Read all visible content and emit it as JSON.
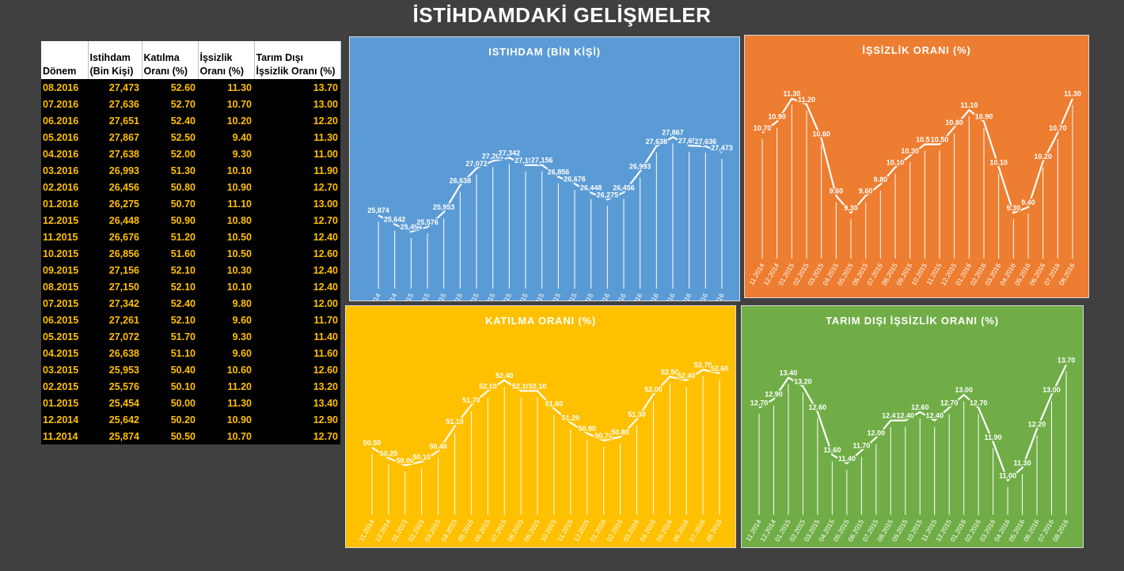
{
  "page": {
    "title": "İSTİHDAMDAKİ GELİŞMELER"
  },
  "table": {
    "headers": [
      {
        "line1": "",
        "line2": "Dönem"
      },
      {
        "line1": "Istihdam",
        "line2": "(Bin Kişi)"
      },
      {
        "line1": "Katılma",
        "line2": "Oranı (%)"
      },
      {
        "line1": "İşsizlik",
        "line2": "Oranı (%)"
      },
      {
        "line1": "Tarım Dışı",
        "line2": "İşsizlik Oranı (%)"
      }
    ],
    "rows": [
      [
        "08.2016",
        "27,473",
        "52.60",
        "11.30",
        "13.70"
      ],
      [
        "07.2016",
        "27,636",
        "52.70",
        "10.70",
        "13.00"
      ],
      [
        "06.2016",
        "27,651",
        "52.40",
        "10.20",
        "12.20"
      ],
      [
        "05.2016",
        "27,867",
        "52.50",
        "9.40",
        "11.30"
      ],
      [
        "04.2016",
        "27,638",
        "52.00",
        "9.30",
        "11.00"
      ],
      [
        "03.2016",
        "26,993",
        "51.30",
        "10.10",
        "11.90"
      ],
      [
        "02.2016",
        "26,456",
        "50.80",
        "10.90",
        "12.70"
      ],
      [
        "01.2016",
        "26,275",
        "50.70",
        "11.10",
        "13.00"
      ],
      [
        "12.2015",
        "26,448",
        "50.90",
        "10.80",
        "12.70"
      ],
      [
        "11.2015",
        "26,676",
        "51.20",
        "10.50",
        "12.40"
      ],
      [
        "10.2015",
        "26,856",
        "51.60",
        "10.50",
        "12.60"
      ],
      [
        "09.2015",
        "27,156",
        "52.10",
        "10.30",
        "12.40"
      ],
      [
        "08.2015",
        "27,150",
        "52.10",
        "10.10",
        "12.40"
      ],
      [
        "07.2015",
        "27,342",
        "52.40",
        "9.80",
        "12.00"
      ],
      [
        "06.2015",
        "27,261",
        "52.10",
        "9.60",
        "11.70"
      ],
      [
        "05.2015",
        "27,072",
        "51.70",
        "9.30",
        "11.40"
      ],
      [
        "04.2015",
        "26,638",
        "51.10",
        "9.60",
        "11.60"
      ],
      [
        "03.2015",
        "25,953",
        "50.40",
        "10.60",
        "12.60"
      ],
      [
        "02.2015",
        "25,576",
        "50.10",
        "11.20",
        "13.20"
      ],
      [
        "01.2015",
        "25,454",
        "50.00",
        "11.30",
        "13.40"
      ],
      [
        "12.2014",
        "25,642",
        "50.20",
        "10.90",
        "12.90"
      ],
      [
        "11.2014",
        "25,874",
        "50.50",
        "10.70",
        "12.70"
      ]
    ]
  },
  "chart_data": [
    {
      "type": "line",
      "title": "ISTIHDAM (BİN KİŞİ)",
      "background": "#5b9bd5",
      "categories": [
        "11.2014",
        "12.2014",
        "01.2015",
        "02.2015",
        "03.2015",
        "04.2015",
        "05.2015",
        "06.2015",
        "07.2015",
        "08.2015",
        "09.2015",
        "10.2015",
        "11.2015",
        "12.2015",
        "01.2016",
        "02.2016",
        "03.2016",
        "04.2016",
        "05.2016",
        "06.2016",
        "07.2016",
        "08.2016"
      ],
      "values": [
        25874,
        25642,
        25454,
        25576,
        25953,
        26638,
        27072,
        27261,
        27342,
        27150,
        27156,
        26856,
        26676,
        26448,
        26275,
        26456,
        26993,
        27638,
        27867,
        27651,
        27636,
        27473
      ],
      "labels": [
        "25,874",
        "25,642",
        "25,454",
        "25,576",
        "25,953",
        "26,638",
        "27,072",
        "27,261",
        "27,342",
        "27,150",
        "27,156",
        "26,856",
        "26,676",
        "26,448",
        "26,275",
        "26,456",
        "26,993",
        "27,638",
        "27,867",
        "27,651",
        "27,636",
        "27,473"
      ],
      "ylim": [
        24000,
        28400
      ],
      "grid": false,
      "legend": "none"
    },
    {
      "type": "line",
      "title": "İŞSİZLİK ORANI (%)",
      "background": "#ed7d31",
      "categories": [
        "11.2014",
        "12.2014",
        "01.2015",
        "02.2015",
        "03.2015",
        "04.2015",
        "05.2015",
        "06.2015",
        "07.2015",
        "08.2015",
        "09.2015",
        "10.2015",
        "11.2015",
        "12.2015",
        "01.2016",
        "02.2016",
        "03.2016",
        "04.2016",
        "05.2016",
        "06.2016",
        "07.2016",
        "08.2016"
      ],
      "values": [
        10.7,
        10.9,
        11.3,
        11.2,
        10.6,
        9.6,
        9.3,
        9.6,
        9.8,
        10.1,
        10.3,
        10.5,
        10.5,
        10.8,
        11.1,
        10.9,
        10.1,
        9.3,
        9.4,
        10.2,
        10.7,
        11.3
      ],
      "labels": [
        "10.70",
        "10.90",
        "11.30",
        "11.20",
        "10.60",
        "9.60",
        "9.30",
        "9.60",
        "9.80",
        "10.10",
        "10.30",
        "10.50",
        "10.50",
        "10.80",
        "11.10",
        "10.90",
        "10.10",
        "9.30",
        "9.40",
        "10.20",
        "10.70",
        "11.30"
      ],
      "ylim": [
        8.5,
        11.6
      ],
      "grid": false,
      "legend": "none"
    },
    {
      "type": "line",
      "title": "KATILMA ORANI (%)",
      "background": "#ffc000",
      "categories": [
        "11.2014",
        "12.2014",
        "01.2015",
        "02.2015",
        "03.2015",
        "04.2015",
        "05.2015",
        "06.2015",
        "07.2015",
        "08.2015",
        "09.2015",
        "10.2015",
        "11.2015",
        "12.2015",
        "01.2016",
        "02.2016",
        "03.2016",
        "04.2016",
        "05.2016",
        "06.2016",
        "07.2016",
        "08.2016"
      ],
      "values": [
        50.5,
        50.2,
        50.0,
        50.1,
        50.4,
        51.1,
        51.7,
        52.1,
        52.4,
        52.1,
        52.1,
        51.6,
        51.2,
        50.9,
        50.7,
        50.8,
        51.3,
        52.0,
        52.5,
        52.4,
        52.7,
        52.6
      ],
      "labels": [
        "50.50",
        "50.20",
        "50.00",
        "50.10",
        "50.40",
        "51.10",
        "51.70",
        "52.10",
        "52.40",
        "52.10",
        "52.10",
        "51.60",
        "51.20",
        "50.90",
        "50.70",
        "50.80",
        "51.30",
        "52.00",
        "52.50",
        "52.40",
        "52.70",
        "52.60"
      ],
      "ylim": [
        48.6,
        53.2
      ],
      "grid": false,
      "legend": "none"
    },
    {
      "type": "line",
      "title": "TARIM DIŞI İŞSİZLİK ORANI (%)",
      "background": "#70ad47",
      "categories": [
        "11.2014",
        "12.2014",
        "01.2015",
        "02.2015",
        "03.2015",
        "04.2015",
        "05.2015",
        "06.2015",
        "07.2015",
        "08.2015",
        "09.2015",
        "10.2015",
        "11.2015",
        "12.2015",
        "01.2016",
        "02.2016",
        "03.2016",
        "04.2016",
        "05.2016",
        "06.2016",
        "07.2016",
        "08.2016"
      ],
      "values": [
        12.7,
        12.9,
        13.4,
        13.2,
        12.6,
        11.6,
        11.4,
        11.7,
        12.0,
        12.4,
        12.4,
        12.6,
        12.4,
        12.7,
        13.0,
        12.7,
        11.9,
        11.0,
        11.3,
        12.2,
        13.0,
        13.7
      ],
      "labels": [
        "12.70",
        "12.90",
        "13.40",
        "13.20",
        "12.60",
        "11.60",
        "11.40",
        "11.70",
        "12.00",
        "12.40",
        "12.40",
        "12.60",
        "12.40",
        "12.70",
        "13.00",
        "12.70",
        "11.90",
        "11.00",
        "11.30",
        "12.20",
        "13.00",
        "13.70"
      ],
      "ylim": [
        10.2,
        14.0
      ],
      "grid": false,
      "legend": "none"
    }
  ]
}
